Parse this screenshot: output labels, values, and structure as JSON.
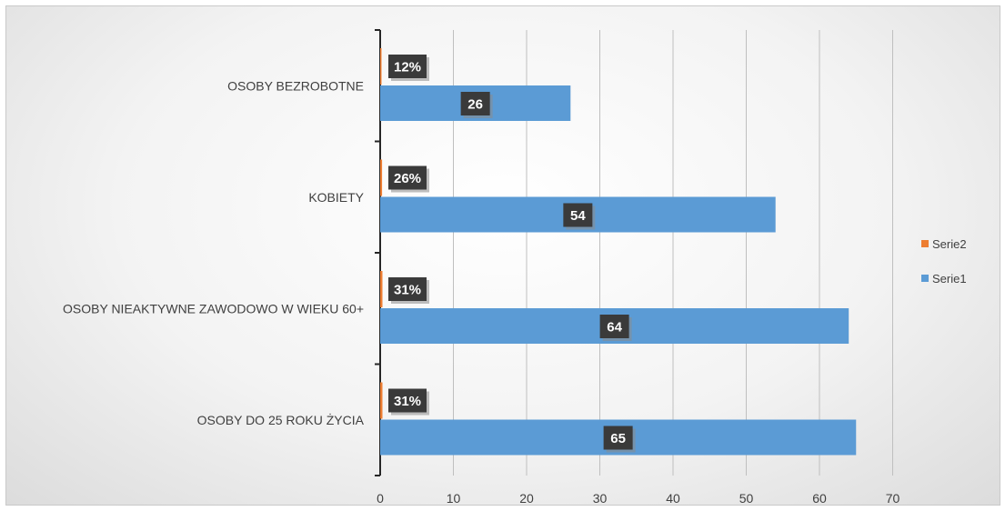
{
  "chart_data": {
    "type": "bar",
    "orientation": "horizontal",
    "categories": [
      "OSOBY BEZROBOTNE",
      "KOBIETY",
      "OSOBY NIEAKTYWNE ZAWODOWO W WIEKU 60+",
      "OSOBY DO 25 ROKU ŻYCIA"
    ],
    "series": [
      {
        "name": "Serie1",
        "color": "#5B9BD5",
        "values": [
          26,
          54,
          64,
          65
        ],
        "data_labels": [
          "26",
          "54",
          "64",
          "65"
        ]
      },
      {
        "name": "Serie2",
        "color": "#ED7D31",
        "values": [
          0.12,
          0.26,
          0.31,
          0.31
        ],
        "data_labels": [
          "12%",
          "26%",
          "31%",
          "31%"
        ]
      }
    ],
    "xlim": [
      0,
      70
    ],
    "x_ticks": [
      "0",
      "10",
      "20",
      "30",
      "40",
      "50",
      "60",
      "70"
    ],
    "grid": true,
    "legend_position": "right",
    "legend_order": [
      "Serie2",
      "Serie1"
    ],
    "title": "",
    "xlabel": "",
    "ylabel": ""
  }
}
